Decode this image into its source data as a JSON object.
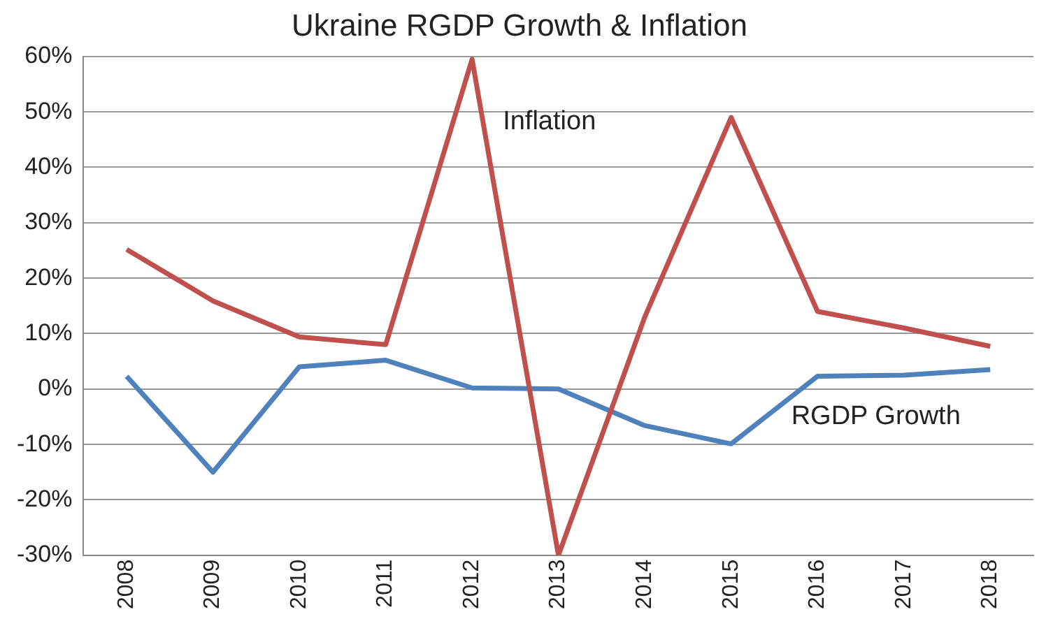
{
  "chart_data": {
    "type": "line",
    "title": "Ukraine RGDP Growth & Inflation",
    "categories": [
      "2008",
      "2009",
      "2010",
      "2011",
      "2012",
      "2013",
      "2014",
      "2015",
      "2016",
      "2017",
      "2018"
    ],
    "series": [
      {
        "name": "Inflation",
        "color": "#c0504d",
        "values": [
          25.2,
          15.9,
          9.4,
          8.0,
          59.5,
          -30,
          13,
          49,
          14,
          11,
          7.7
        ]
      },
      {
        "name": "RGDP Growth",
        "color": "#4f81bd",
        "values": [
          2.3,
          -15,
          4,
          5.2,
          0.2,
          0,
          -6.6,
          -9.9,
          2.3,
          2.5,
          3.5
        ]
      }
    ],
    "ylim": [
      -30,
      60
    ],
    "yticks": [
      {
        "value": -30,
        "label": "-30%"
      },
      {
        "value": -20,
        "label": "-20%"
      },
      {
        "value": -10,
        "label": "-10%"
      },
      {
        "value": 0,
        "label": "0%"
      },
      {
        "value": 10,
        "label": "10%"
      },
      {
        "value": 20,
        "label": "20%"
      },
      {
        "value": 30,
        "label": "30%"
      },
      {
        "value": 40,
        "label": "40%"
      },
      {
        "value": 50,
        "label": "50%"
      },
      {
        "value": 60,
        "label": "60%"
      }
    ],
    "grid": "y",
    "legend": false,
    "marker": "none",
    "line_style": "solid"
  }
}
